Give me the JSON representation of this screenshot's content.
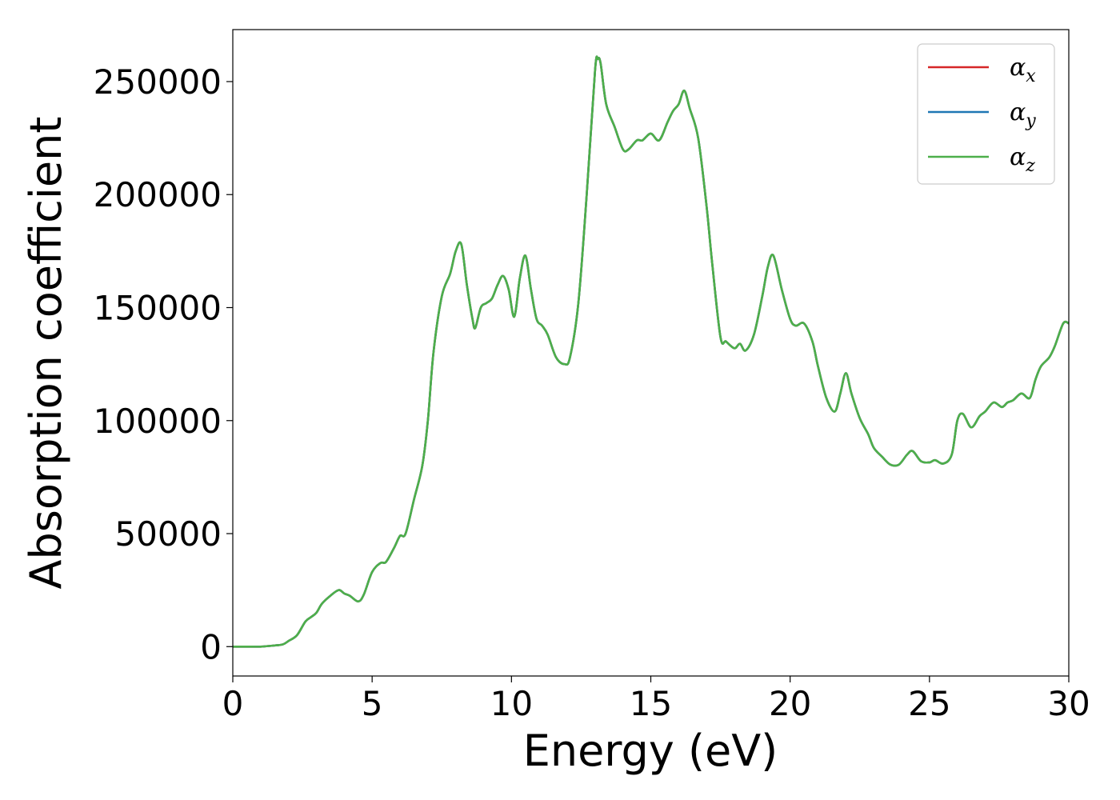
{
  "chart_data": {
    "type": "line",
    "title": "",
    "xlabel": "Energy (eV)",
    "ylabel": "Absorption coefficient",
    "xlim": [
      0,
      30
    ],
    "ylim": [
      -13000,
      273000
    ],
    "xticks": [
      0,
      5,
      10,
      15,
      20,
      25,
      30
    ],
    "xtick_labels": [
      "0",
      "5",
      "10",
      "15",
      "20",
      "25",
      "30"
    ],
    "yticks": [
      0,
      50000,
      100000,
      150000,
      200000,
      250000
    ],
    "ytick_labels": [
      "0",
      "50000",
      "100000",
      "150000",
      "200000",
      "250000"
    ],
    "grid": false,
    "legend": {
      "placement": "top-right",
      "entries": [
        {
          "symbol": "α",
          "subscript": "x",
          "color": "#d62728"
        },
        {
          "symbol": "α",
          "subscript": "y",
          "color": "#1f77b4"
        },
        {
          "symbol": "α",
          "subscript": "z",
          "color": "#4daf4a"
        }
      ]
    },
    "x": [
      0,
      0.5,
      1.0,
      1.5,
      1.8,
      2.0,
      2.3,
      2.6,
      2.8,
      3.0,
      3.2,
      3.5,
      3.8,
      4.0,
      4.2,
      4.5,
      4.7,
      5.0,
      5.3,
      5.5,
      5.8,
      6.0,
      6.2,
      6.5,
      6.8,
      7.0,
      7.2,
      7.5,
      7.8,
      8.0,
      8.2,
      8.4,
      8.6,
      8.7,
      8.9,
      9.1,
      9.3,
      9.5,
      9.7,
      9.9,
      10.1,
      10.3,
      10.5,
      10.7,
      10.9,
      11.1,
      11.3,
      11.6,
      11.9,
      12.1,
      12.4,
      12.7,
      13.0,
      13.1,
      13.2,
      13.4,
      13.7,
      14.0,
      14.2,
      14.5,
      14.7,
      15.0,
      15.3,
      15.6,
      15.8,
      16.0,
      16.2,
      16.4,
      16.7,
      17.0,
      17.2,
      17.5,
      17.7,
      18.0,
      18.2,
      18.4,
      18.7,
      19.0,
      19.2,
      19.4,
      19.7,
      20.0,
      20.2,
      20.5,
      20.8,
      21.0,
      21.3,
      21.6,
      21.8,
      22.0,
      22.2,
      22.5,
      22.8,
      23.0,
      23.3,
      23.6,
      23.9,
      24.2,
      24.4,
      24.7,
      25.0,
      25.2,
      25.5,
      25.8,
      26.0,
      26.2,
      26.5,
      26.8,
      27.0,
      27.3,
      27.6,
      27.8,
      28.0,
      28.3,
      28.6,
      28.8,
      29.0,
      29.3,
      29.5,
      29.8,
      30.0
    ],
    "series": [
      {
        "name_symbol": "α",
        "name_subscript": "x",
        "color": "#d62728",
        "values": [
          0,
          0,
          0,
          500,
          1000,
          2500,
          5000,
          11000,
          13000,
          15000,
          19000,
          22500,
          25000,
          23500,
          22500,
          20000,
          23000,
          33000,
          37000,
          37500,
          44000,
          49000,
          50000,
          65000,
          80000,
          100000,
          130000,
          155000,
          165000,
          175000,
          178000,
          160000,
          145000,
          141000,
          150000,
          152000,
          154000,
          160000,
          164000,
          158000,
          146000,
          163000,
          173000,
          158000,
          145000,
          142000,
          138000,
          128000,
          125000,
          128000,
          152000,
          200000,
          255000,
          260000,
          258000,
          240000,
          230000,
          220000,
          220000,
          224000,
          224000,
          227000,
          224000,
          232000,
          237000,
          240000,
          246000,
          238000,
          225000,
          195000,
          170000,
          137000,
          135000,
          132000,
          134000,
          131000,
          138000,
          155000,
          168000,
          173000,
          158000,
          145000,
          142000,
          143000,
          135000,
          124000,
          110000,
          104000,
          112000,
          121000,
          112000,
          101000,
          94000,
          88000,
          84000,
          80500,
          80500,
          85000,
          86500,
          82000,
          81500,
          82500,
          81000,
          85000,
          100000,
          103000,
          97000,
          102000,
          104000,
          108000,
          106000,
          108000,
          109000,
          112000,
          110000,
          118000,
          124000,
          128000,
          133000,
          143000,
          143000
        ]
      },
      {
        "name_symbol": "α",
        "name_subscript": "y",
        "color": "#1f77b4",
        "values": [
          0,
          0,
          0,
          500,
          1000,
          2500,
          5000,
          11000,
          13000,
          15000,
          19000,
          22500,
          25000,
          23500,
          22500,
          20000,
          23000,
          33000,
          37000,
          37500,
          44000,
          49000,
          50000,
          65000,
          80000,
          100000,
          130000,
          155000,
          165000,
          175000,
          178000,
          160000,
          145000,
          141000,
          150000,
          152000,
          154000,
          160000,
          164000,
          158000,
          146000,
          163000,
          173000,
          158000,
          145000,
          142000,
          138000,
          128000,
          125000,
          128000,
          152000,
          200000,
          255000,
          260000,
          258000,
          240000,
          230000,
          220000,
          220000,
          224000,
          224000,
          227000,
          224000,
          232000,
          237000,
          240000,
          246000,
          238000,
          225000,
          195000,
          170000,
          137000,
          135000,
          132000,
          134000,
          131000,
          138000,
          155000,
          168000,
          173000,
          158000,
          145000,
          142000,
          143000,
          135000,
          124000,
          110000,
          104000,
          112000,
          121000,
          112000,
          101000,
          94000,
          88000,
          84000,
          80500,
          80500,
          85000,
          86500,
          82000,
          81500,
          82500,
          81000,
          85000,
          100000,
          103000,
          97000,
          102000,
          104000,
          108000,
          106000,
          108000,
          109000,
          112000,
          110000,
          118000,
          124000,
          128000,
          133000,
          143000,
          143000
        ]
      },
      {
        "name_symbol": "α",
        "name_subscript": "z",
        "color": "#4daf4a",
        "values": [
          0,
          0,
          0,
          500,
          1000,
          2500,
          5000,
          11000,
          13000,
          15000,
          19000,
          22500,
          25000,
          23500,
          22500,
          20000,
          23000,
          33000,
          37000,
          37500,
          44000,
          49000,
          50000,
          65000,
          80000,
          100000,
          130000,
          155000,
          165000,
          175000,
          178000,
          160000,
          145000,
          141000,
          150000,
          152000,
          154000,
          160000,
          164000,
          158000,
          146000,
          163000,
          173000,
          158000,
          145000,
          142000,
          138000,
          128000,
          125000,
          128000,
          152000,
          200000,
          255000,
          260000,
          258000,
          240000,
          230000,
          220000,
          220000,
          224000,
          224000,
          227000,
          224000,
          232000,
          237000,
          240000,
          246000,
          238000,
          225000,
          195000,
          170000,
          137000,
          135000,
          132000,
          134000,
          131000,
          138000,
          155000,
          168000,
          173000,
          158000,
          145000,
          142000,
          143000,
          135000,
          124000,
          110000,
          104000,
          112000,
          121000,
          112000,
          101000,
          94000,
          88000,
          84000,
          80500,
          80500,
          85000,
          86500,
          82000,
          81500,
          82500,
          81000,
          85000,
          100000,
          103000,
          97000,
          102000,
          104000,
          108000,
          106000,
          108000,
          109000,
          112000,
          110000,
          118000,
          124000,
          128000,
          133000,
          143000,
          143000
        ]
      }
    ]
  }
}
